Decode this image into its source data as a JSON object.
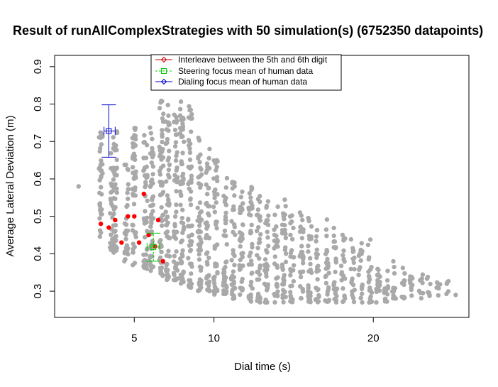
{
  "chart_data": {
    "type": "scatter",
    "title": "Result of runAllComplexStrategies with 50 simulation(s) (6752350 datapoints)",
    "xlabel": "Dial time (s)",
    "ylabel": "Average Lateral Deviation (m)",
    "xlim": [
      0,
      26
    ],
    "ylim": [
      0.23,
      0.93
    ],
    "x_ticks": [
      5,
      10,
      20
    ],
    "y_ticks": [
      0.3,
      0.4,
      0.5,
      0.6,
      0.7,
      0.8,
      0.9
    ],
    "grid": false,
    "legend_position": "top-center",
    "colors": {
      "simulation": "#a9a9a9",
      "highlight": "#ff0000",
      "interleave": "#cc0000",
      "steering": "#00cc00",
      "dialing": "#0000cc"
    },
    "legend": [
      "Interleave between the 5th and 6th digit",
      "Steering focus mean of human data",
      "Dialing focus mean of human data"
    ],
    "series": [
      {
        "role": "simulation-clusters",
        "x_min": [
          1.4,
          2.9,
          3.6,
          3.8,
          4.5,
          5.0,
          5.7,
          6.1,
          6.7,
          7.1,
          7.6,
          8.0,
          8.5,
          9.1,
          9.6,
          10.1,
          10.7,
          11.2,
          11.7,
          12.3,
          12.8,
          13.3,
          13.9,
          14.4,
          14.9,
          15.5,
          16.0,
          16.5,
          17.1,
          17.6,
          18.1,
          18.7,
          19.2,
          19.8,
          20.3,
          20.8,
          21.3,
          21.9,
          22.4,
          23.0,
          23.5,
          24.1,
          24.6,
          25.1
        ],
        "y_min": [
          0.58,
          0.44,
          0.41,
          0.4,
          0.38,
          0.37,
          0.36,
          0.35,
          0.34,
          0.33,
          0.33,
          0.32,
          0.31,
          0.3,
          0.3,
          0.29,
          0.29,
          0.28,
          0.28,
          0.27,
          0.27,
          0.27,
          0.27,
          0.27,
          0.27,
          0.28,
          0.27,
          0.27,
          0.27,
          0.27,
          0.27,
          0.27,
          0.27,
          0.27,
          0.27,
          0.27,
          0.28,
          0.28,
          0.28,
          0.28,
          0.28,
          0.28,
          0.29,
          0.29
        ],
        "y_max": [
          0.58,
          0.75,
          0.67,
          0.73,
          0.64,
          0.76,
          0.72,
          0.74,
          0.82,
          0.8,
          0.79,
          0.82,
          0.8,
          0.72,
          0.68,
          0.66,
          0.62,
          0.6,
          0.6,
          0.58,
          0.56,
          0.55,
          0.53,
          0.55,
          0.51,
          0.52,
          0.5,
          0.47,
          0.5,
          0.47,
          0.46,
          0.44,
          0.43,
          0.44,
          0.4,
          0.4,
          0.38,
          0.37,
          0.36,
          0.35,
          0.34,
          0.33,
          0.33,
          0.29
        ]
      },
      {
        "name": "Interleave between the 5th and 6th digit",
        "x": [
          2.9,
          3.4,
          3.8,
          4.2,
          4.6,
          5.0,
          5.3,
          5.6,
          5.9,
          6.3,
          6.5,
          6.8
        ],
        "y": [
          0.48,
          0.47,
          0.49,
          0.43,
          0.5,
          0.5,
          0.43,
          0.56,
          0.45,
          0.42,
          0.49,
          0.38
        ]
      },
      {
        "name": "Steering focus mean of human data",
        "x": 6.2,
        "y": 0.418,
        "y_err": [
          0.38,
          0.455
        ],
        "x_err": [
          5.8,
          6.6
        ]
      },
      {
        "name": "Dialing focus mean of human data",
        "x": 3.4,
        "y": 0.728,
        "y_err": [
          0.658,
          0.798
        ],
        "x_err": [
          3.1,
          3.8
        ]
      }
    ]
  }
}
